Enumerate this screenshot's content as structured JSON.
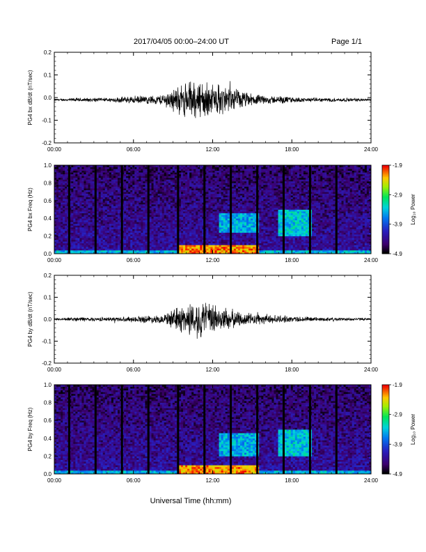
{
  "header": {
    "title": "2017/04/05  00:00–24:00 UT",
    "page": "Page 1/1"
  },
  "footer": {
    "xlabel": "Universal Time (hh:mm)"
  },
  "colorbar": {
    "label": "Log₁₀ Power",
    "ticks": [
      "-1.9",
      "-2.9",
      "-3.9",
      "-4.9"
    ],
    "range": [
      -4.9,
      -1.9
    ]
  },
  "chart_data": [
    {
      "type": "line",
      "ylabel": "PG4 bx dB/dt (nT/sec)",
      "xlim": [
        0,
        24
      ],
      "ylim": [
        -0.2,
        0.2
      ],
      "xticks": [
        "00:00",
        "06:00",
        "12:00",
        "18:00",
        "24:00"
      ],
      "yticks": [
        "0.2",
        "0.1",
        "0.0",
        "-0.1",
        "-0.2"
      ],
      "series": [
        {
          "x": [
            0,
            1,
            2,
            3,
            4,
            5,
            6,
            7,
            8,
            8.5,
            9,
            9.5,
            10,
            10.5,
            11,
            11.5,
            12,
            12.5,
            13,
            13.5,
            14,
            15,
            16,
            17,
            18,
            19,
            20,
            21,
            22,
            23,
            24
          ],
          "values": [
            -0.01,
            -0.01,
            -0.01,
            -0.01,
            -0.01,
            -0.01,
            -0.01,
            -0.01,
            -0.01,
            -0.01,
            -0.01,
            -0.01,
            -0.01,
            -0.01,
            -0.01,
            -0.01,
            -0.01,
            -0.01,
            -0.01,
            -0.01,
            -0.01,
            -0.01,
            -0.01,
            -0.01,
            -0.01,
            -0.01,
            -0.01,
            -0.01,
            -0.01,
            -0.01,
            -0.01
          ],
          "envelope": [
            0.005,
            0.008,
            0.01,
            0.01,
            0.01,
            0.015,
            0.02,
            0.02,
            0.025,
            0.04,
            0.06,
            0.07,
            0.09,
            0.1,
            0.1,
            0.09,
            0.08,
            0.08,
            0.07,
            0.06,
            0.05,
            0.03,
            0.02,
            0.02,
            0.015,
            0.01,
            0.01,
            0.01,
            0.01,
            0.008,
            0.005
          ]
        }
      ]
    },
    {
      "type": "heatmap",
      "ylabel": "PG4 bx Freq (Hz)",
      "xlim": [
        0,
        24
      ],
      "ylim": [
        0.0,
        1.0
      ],
      "xticks": [
        "00:00",
        "06:00",
        "12:00",
        "18:00",
        "24:00"
      ],
      "yticks": [
        "1.0",
        "0.8",
        "0.6",
        "0.4",
        "0.2",
        "0.0"
      ],
      "data_gaps_hours": [
        1.05,
        3.05,
        5.05,
        7.05,
        9.3,
        11.3,
        13.3,
        15.3,
        17.3,
        19.3,
        21.3
      ],
      "activity": [
        {
          "t0": 9.5,
          "t1": 15.5,
          "f0": 0.0,
          "f1": 0.1,
          "power": -2.2
        },
        {
          "t0": 12.5,
          "t1": 15.5,
          "f0": 0.25,
          "f1": 0.45,
          "power": -3.5
        },
        {
          "t0": 17.0,
          "t1": 19.5,
          "f0": 0.2,
          "f1": 0.5,
          "power": -3.4
        }
      ]
    },
    {
      "type": "line",
      "ylabel": "PG4 by dB/dt (nT/sec)",
      "xlim": [
        0,
        24
      ],
      "ylim": [
        -0.2,
        0.2
      ],
      "xticks": [
        "00:00",
        "06:00",
        "12:00",
        "18:00",
        "24:00"
      ],
      "yticks": [
        "0.2",
        "0.1",
        "0.0",
        "-0.1",
        "-0.2"
      ],
      "series": [
        {
          "x": [
            0,
            1,
            2,
            3,
            4,
            5,
            6,
            7,
            8,
            8.5,
            9,
            9.5,
            10,
            10.5,
            11,
            11.5,
            12,
            12.5,
            13,
            13.5,
            14,
            15,
            16,
            17,
            18,
            19,
            20,
            21,
            22,
            23,
            24
          ],
          "values": [
            0.0,
            0.0,
            0.0,
            0.0,
            0.0,
            0.0,
            0.0,
            0.0,
            0.0,
            0.0,
            0.0,
            0.0,
            0.0,
            0.0,
            0.0,
            0.0,
            0.0,
            0.0,
            0.0,
            0.0,
            0.0,
            0.0,
            0.0,
            0.0,
            0.0,
            0.0,
            0.0,
            0.0,
            0.0,
            0.0,
            0.0
          ],
          "envelope": [
            0.005,
            0.008,
            0.012,
            0.01,
            0.01,
            0.012,
            0.015,
            0.02,
            0.02,
            0.03,
            0.05,
            0.07,
            0.08,
            0.09,
            0.1,
            0.09,
            0.08,
            0.07,
            0.06,
            0.05,
            0.04,
            0.03,
            0.025,
            0.02,
            0.015,
            0.015,
            0.01,
            0.01,
            0.008,
            0.008,
            0.005
          ]
        }
      ]
    },
    {
      "type": "heatmap",
      "ylabel": "PG4 by Freq (Hz)",
      "xlim": [
        0,
        24
      ],
      "ylim": [
        0.0,
        1.0
      ],
      "xticks": [
        "00:00",
        "06:00",
        "12:00",
        "18:00",
        "24:00"
      ],
      "yticks": [
        "1.0",
        "0.8",
        "0.6",
        "0.4",
        "0.2",
        "0.0"
      ],
      "data_gaps_hours": [
        1.05,
        3.05,
        5.05,
        7.05,
        9.3,
        11.3,
        13.3,
        15.3,
        17.3,
        19.3,
        21.3
      ],
      "activity": [
        {
          "t0": 9.5,
          "t1": 15.5,
          "f0": 0.0,
          "f1": 0.1,
          "power": -2.2
        },
        {
          "t0": 12.5,
          "t1": 15.5,
          "f0": 0.2,
          "f1": 0.45,
          "power": -3.5
        },
        {
          "t0": 17.0,
          "t1": 19.5,
          "f0": 0.2,
          "f1": 0.5,
          "power": -3.4
        }
      ]
    }
  ]
}
